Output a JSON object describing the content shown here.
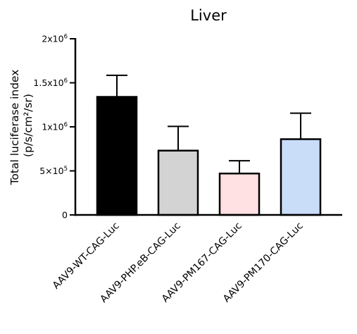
{
  "chart_data": {
    "type": "bar",
    "title": "Liver",
    "ylabel_lines": [
      "Total luciferase index",
      "(p/s/cm²/sr)"
    ],
    "categories": [
      "AAV9-WT-CAG-Luc",
      "AAV9-PHP.eB-CAG-Luc",
      "AAV9-PM167-CAG-Luc",
      "AAV9-PM170-CAG-Luc"
    ],
    "values": [
      1340000,
      730000,
      470000,
      860000
    ],
    "errors": [
      245000,
      275000,
      145000,
      295000
    ],
    "colors": [
      "#000000",
      "#d3d3d3",
      "#ffe0e3",
      "#c9dcf8"
    ],
    "ylim": [
      0,
      2000000
    ],
    "yticks": [
      {
        "value": 0,
        "base": "0",
        "exp": ""
      },
      {
        "value": 500000,
        "base": "5×10",
        "exp": "5"
      },
      {
        "value": 1000000,
        "base": "1x10",
        "exp": "6"
      },
      {
        "value": 1500000,
        "base": "1.5x10",
        "exp": "6"
      },
      {
        "value": 2000000,
        "base": "2x10",
        "exp": "6"
      }
    ],
    "grid": false,
    "legend": "none"
  }
}
